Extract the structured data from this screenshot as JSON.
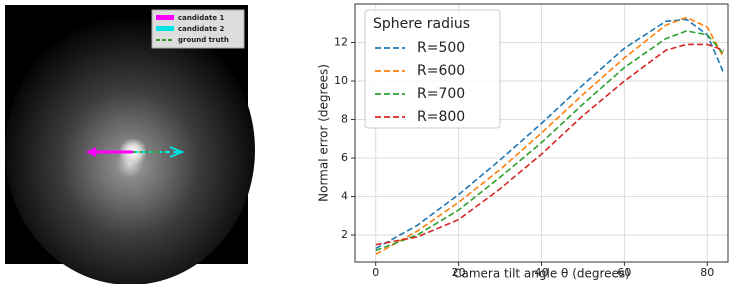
{
  "image_panel": {
    "legend": [
      "candidate 1",
      "candidate 2",
      "ground truth"
    ]
  },
  "chart_data": {
    "type": "line",
    "xlabel": "Camera tilt angle θ (degrees)",
    "ylabel": "Normal error (degrees)",
    "legend_title": "Sphere radius",
    "legend": "upper left",
    "grid": true,
    "x": [
      0,
      10,
      20,
      30,
      40,
      50,
      60,
      70,
      75,
      80,
      84
    ],
    "series": [
      {
        "name": "R=500",
        "color": "#1f77b4",
        "values": [
          1.3,
          2.5,
          4.1,
          5.9,
          7.8,
          9.8,
          11.7,
          13.1,
          13.2,
          12.4,
          10.4
        ]
      },
      {
        "name": "R=600",
        "color": "#ff7f0e",
        "values": [
          1.0,
          2.2,
          3.7,
          5.4,
          7.3,
          9.3,
          11.2,
          12.9,
          13.3,
          12.8,
          11.2
        ]
      },
      {
        "name": "R=700",
        "color": "#2ca02c",
        "values": [
          1.2,
          2.0,
          3.3,
          5.0,
          6.8,
          8.8,
          10.7,
          12.2,
          12.6,
          12.4,
          11.4
        ]
      },
      {
        "name": "R=800",
        "color": "#d62728",
        "values": [
          1.5,
          1.9,
          2.8,
          4.4,
          6.2,
          8.2,
          10.0,
          11.6,
          11.9,
          11.9,
          11.6
        ]
      }
    ],
    "xlim": [
      -5,
      85
    ],
    "xticks": [
      0,
      20,
      40,
      60,
      80
    ],
    "ylim": [
      0.6,
      14
    ],
    "yticks": [
      2,
      4,
      6,
      8,
      10,
      12
    ]
  }
}
